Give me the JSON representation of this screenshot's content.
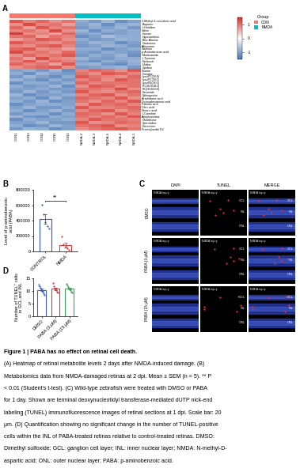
{
  "panel_labels": [
    "A",
    "B",
    "C",
    "D"
  ],
  "chart_data": [
    {
      "type": "heatmap",
      "rows": [
        "3-Methyl-2-oxovaleric acid",
        "Biopterin",
        "L-Histidine",
        "Valine",
        "Inosine",
        "Hypoxanthine",
        "Beta-Alanine",
        "Guanosine",
        "Adenosine",
        "Xanthine",
        "p-Aminobenzoic acid",
        "Nicotinamide",
        "L-Tyrosine",
        "Pyridoxal",
        "Uridine",
        "Cytidine",
        "Taurine",
        "Creatine",
        "LysoPC(16:0)",
        "LysoPC(18:1)",
        "LysoPE(18:0)",
        "PC(16:0/18:1)",
        "PE(18:0/22:6)",
        "Ceramide",
        "Sphingosine",
        "Arachidonic acid",
        "Docosahexaenoic acid",
        "Palmitic acid",
        "Oleic acid",
        "Stearic acid",
        "L-Carnitine",
        "Acetylcarnitine",
        "Glutathione",
        "Spermidine",
        "Putrescine",
        "Prostaglandin E2"
      ],
      "columns": [
        "CON1",
        "CON3",
        "CON4",
        "CON5",
        "CON2",
        "NMDA-2",
        "NMDA-3",
        "NMDA-5",
        "NMDA-4",
        "NMDA-1"
      ],
      "groups": [
        "CON",
        "CON",
        "CON",
        "CON",
        "CON",
        "NMDA",
        "NMDA",
        "NMDA",
        "NMDA",
        "NMDA"
      ],
      "group_legend": {
        "title": "Group",
        "names": [
          "CON",
          "NMDA"
        ],
        "colors": [
          "#f8766d",
          "#00bfc4"
        ]
      },
      "colors": [
        "#4575b4",
        "#ffffff",
        "#d73027"
      ],
      "colorbar": {
        "range": [
          -1.5,
          1.5
        ],
        "ticks": [
          -1,
          0,
          1
        ]
      },
      "cells": [
        [
          1.2,
          0.9,
          1.1,
          0.8,
          1.0,
          -0.9,
          -1.1,
          -0.8,
          -1.2,
          -1.0
        ],
        [
          0.8,
          1.3,
          0.9,
          1.0,
          0.7,
          -1.0,
          -0.8,
          -1.2,
          -0.9,
          -0.8
        ],
        [
          1.1,
          0.7,
          1.2,
          0.9,
          1.0,
          -1.1,
          -0.9,
          -1.0,
          -0.8,
          -1.1
        ],
        [
          0.9,
          1.0,
          0.8,
          1.3,
          0.8,
          -0.8,
          -1.2,
          -0.9,
          -1.0,
          -0.9
        ],
        [
          1.4,
          0.8,
          0.9,
          0.7,
          1.1,
          -1.0,
          -0.9,
          -1.1,
          -1.0,
          -0.9
        ],
        [
          1.0,
          1.1,
          0.7,
          1.0,
          0.9,
          -1.2,
          -1.0,
          -0.7,
          -0.9,
          -0.9
        ],
        [
          0.7,
          0.9,
          1.2,
          1.1,
          0.8,
          -0.9,
          -1.1,
          -1.0,
          -0.8,
          -0.9
        ],
        [
          1.2,
          1.0,
          0.9,
          0.8,
          1.0,
          -1.0,
          -0.8,
          -0.9,
          -1.2,
          -1.0
        ],
        [
          0.9,
          0.8,
          1.1,
          1.2,
          0.9,
          -1.1,
          -1.0,
          -0.8,
          -0.9,
          -1.1
        ],
        [
          1.1,
          1.2,
          0.8,
          0.9,
          0.7,
          -0.9,
          -0.9,
          -1.2,
          -1.0,
          -0.9
        ],
        [
          1.3,
          0.9,
          1.0,
          0.8,
          1.1,
          -1.0,
          -1.1,
          -0.9,
          -1.0,
          -1.1
        ],
        [
          0.8,
          1.1,
          0.9,
          1.0,
          1.2,
          -1.1,
          -0.9,
          -1.0,
          -0.8,
          -1.2
        ],
        [
          1.0,
          0.7,
          1.3,
          0.9,
          0.8,
          -0.8,
          -1.0,
          -1.1,
          -0.9,
          -0.9
        ],
        [
          0.9,
          1.2,
          0.8,
          1.1,
          0.9,
          -1.0,
          -1.2,
          -0.9,
          -1.0,
          -0.8
        ],
        [
          1.1,
          0.9,
          1.0,
          0.7,
          1.2,
          -0.9,
          -0.8,
          -1.1,
          -1.2,
          -0.9
        ],
        [
          0.8,
          1.0,
          1.1,
          1.2,
          0.8,
          -1.1,
          -1.0,
          -0.9,
          -0.8,
          -1.1
        ],
        [
          -1.0,
          -0.9,
          -1.1,
          -0.8,
          -1.2,
          0.9,
          1.1,
          1.0,
          0.8,
          1.2
        ],
        [
          -0.9,
          -1.2,
          -0.8,
          -1.0,
          -1.1,
          1.0,
          0.8,
          1.2,
          1.1,
          0.9
        ],
        [
          -1.1,
          -0.8,
          -1.0,
          -1.2,
          -0.9,
          1.2,
          1.0,
          0.9,
          0.8,
          1.1
        ],
        [
          -0.8,
          -1.0,
          -1.2,
          -0.9,
          -1.1,
          0.9,
          1.1,
          0.8,
          1.2,
          1.0
        ],
        [
          -1.2,
          -0.9,
          -0.9,
          -1.1,
          -0.9,
          1.1,
          0.9,
          1.0,
          1.0,
          1.0
        ],
        [
          -0.9,
          -1.1,
          -1.0,
          -0.8,
          -1.2,
          0.8,
          1.2,
          1.1,
          0.9,
          1.0
        ],
        [
          -1.0,
          -1.0,
          -0.9,
          -1.1,
          -1.0,
          1.0,
          1.0,
          0.9,
          1.3,
          0.8
        ],
        [
          -1.1,
          -0.8,
          -1.1,
          -0.9,
          -1.1,
          1.2,
          0.9,
          0.8,
          1.0,
          1.1
        ],
        [
          -0.8,
          -1.2,
          -1.0,
          -1.0,
          -0.9,
          0.9,
          1.1,
          1.2,
          0.8,
          1.0
        ],
        [
          -1.0,
          -0.9,
          -1.2,
          -0.8,
          -1.1,
          1.1,
          1.0,
          0.9,
          1.2,
          0.8
        ],
        [
          -0.9,
          -1.1,
          -0.8,
          -1.2,
          -1.0,
          1.0,
          0.8,
          1.1,
          0.9,
          1.2
        ],
        [
          -1.2,
          -1.0,
          -0.9,
          -0.9,
          -1.0,
          0.8,
          1.2,
          1.0,
          1.1,
          0.9
        ],
        [
          -1.0,
          -0.8,
          -1.1,
          -1.1,
          -0.9,
          1.2,
          0.9,
          0.9,
          1.0,
          1.1
        ],
        [
          -0.9,
          -1.2,
          -1.0,
          -0.8,
          -1.1,
          0.9,
          1.1,
          1.2,
          0.8,
          1.0
        ],
        [
          -1.1,
          -0.9,
          -0.9,
          -1.2,
          -0.9,
          1.1,
          1.0,
          0.8,
          1.2,
          0.9
        ],
        [
          -0.8,
          -1.1,
          -1.2,
          -0.9,
          -1.0,
          1.0,
          0.9,
          1.1,
          0.9,
          1.2
        ],
        [
          -1.2,
          -0.9,
          -1.0,
          -1.0,
          -0.9,
          0.9,
          1.2,
          1.0,
          1.0,
          0.9
        ],
        [
          -1.0,
          -1.0,
          -0.8,
          -1.1,
          -1.1,
          1.2,
          0.8,
          0.9,
          1.1,
          1.0
        ],
        [
          -0.9,
          -1.2,
          -1.1,
          -0.8,
          -1.0,
          1.0,
          1.1,
          1.2,
          0.8,
          0.9
        ],
        [
          -1.1,
          -0.8,
          -0.9,
          -1.2,
          -1.0,
          0.8,
          1.0,
          1.1,
          1.2,
          1.0
        ]
      ]
    },
    {
      "type": "bar",
      "ylabel": "Level of p-aminobenzoic\nacid (PABA)",
      "categories": [
        "CONTROL",
        "NMDA"
      ],
      "values": [
        420000,
        80000
      ],
      "errors": [
        58000,
        30000
      ],
      "points": [
        [
          610000,
          480000,
          380000,
          330000,
          300000
        ],
        [
          190000,
          90000,
          60000,
          40000,
          20000
        ]
      ],
      "colors": [
        "#2f55c8",
        "#e03a3a"
      ],
      "ylim": [
        0,
        800000
      ],
      "yticks": [
        0,
        200000,
        400000,
        600000,
        800000
      ],
      "annotations": [
        "**"
      ]
    },
    {
      "type": "bar",
      "ylabel": "Number of TUNEL⁺ cells\nin GCL and INL",
      "categories": [
        "DMSO",
        "PABA (3 μM)",
        "PABA (15 μM)"
      ],
      "values": [
        10.4,
        10.8,
        11.0
      ],
      "errors": [
        0.5,
        0.5,
        0.4
      ],
      "points": [
        [
          12.6,
          11.8,
          11.2,
          10.5,
          10.0,
          9.6,
          9.0,
          8.4
        ],
        [
          13.0,
          11.9,
          11.0,
          10.6,
          10.2,
          9.8,
          9.3
        ],
        [
          12.8,
          12.1,
          11.5,
          11.0,
          10.7,
          10.2,
          9.8,
          9.5
        ]
      ],
      "colors": [
        "#3a5fcd",
        "#e0303a",
        "#2fa84f"
      ],
      "ylim": [
        0,
        15
      ],
      "yticks": [
        0,
        5,
        10,
        15
      ]
    }
  ],
  "images": {
    "columns": [
      "DAPI",
      "TUNEL",
      "MERGE"
    ],
    "rows": [
      "DMSO",
      "PABA (3 μM)",
      "PABA (15 μM)"
    ],
    "inset": "NMDA injury",
    "layers": [
      "GCL",
      "INL",
      "ONL"
    ]
  },
  "caption": [
    "Figure 1 | PABA has no effect on retinal cell death.",
    "(A) Heatmap of retinal metabolite levels 2 days after NMDA-induced damage. (B)",
    "Metabolomics data from NMDA-damaged retinas at 2 dpi. Mean ± SEM (n = 5). ** P",
    "< 0.01 (Student's t-test). (C) Wild-type zebrafish were treated with DMSO or PABA",
    "for 1 day. Shown are terminal deoxynucleotidyl transferase-mediated dUTP nick-end",
    "labeling (TUNEL) immunofluorescence images of retinal sections at 1 dpi. Scale bar: 20",
    "μm. (D) Quantification showing no significant change in the number of TUNEL-positive",
    "cells within the INL of PABA-treated retinas relative to control-treated retinas. DMSO:",
    "Dimethyl sulfoxide; GCL: ganglion cell layer; INL: inner nuclear layer; NMDA: N-methyl-D-",
    "aspartic acid; ONL: outer nuclear layer; PABA: p-aminobenzoic acid."
  ]
}
